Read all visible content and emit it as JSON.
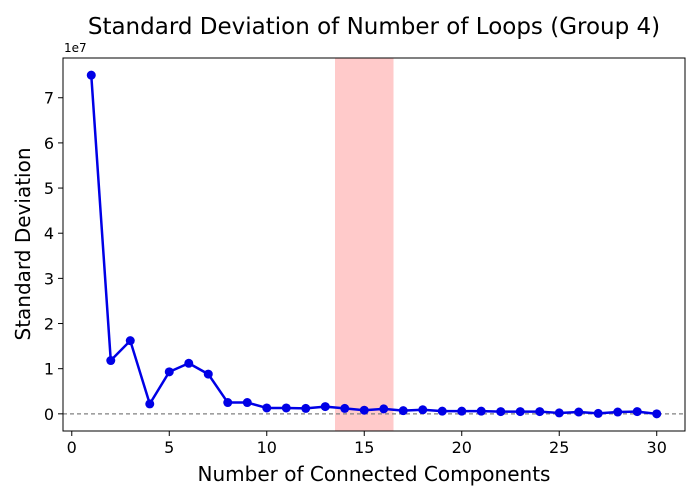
{
  "chart_data": {
    "type": "line",
    "title": "Standard Deviation of Number of Loops (Group 4)",
    "xlabel": "Number of Connected Components",
    "ylabel": "Standard Deviation",
    "y_offset_label": "1e7",
    "xlim": [
      -0.45,
      31.45
    ],
    "ylim": [
      -0.38,
      7.88
    ],
    "x_ticks": [
      0,
      5,
      10,
      15,
      20,
      25,
      30
    ],
    "y_ticks": [
      0,
      1,
      2,
      3,
      4,
      5,
      6,
      7
    ],
    "grid": false,
    "highlight_band": {
      "x_range": [
        13.5,
        16.5
      ],
      "color": "#ff9f9f"
    },
    "reference_line": {
      "y": 0,
      "style": "dashed",
      "color": "#808080"
    },
    "series": [
      {
        "color": "#0000e6",
        "x": [
          1,
          2,
          3,
          4,
          5,
          6,
          7,
          8,
          9,
          10,
          11,
          12,
          13,
          14,
          15,
          16,
          17,
          18,
          19,
          20,
          21,
          22,
          23,
          24,
          25,
          26,
          27,
          28,
          29,
          30
        ],
        "y": [
          7.5,
          1.18,
          1.62,
          0.22,
          0.93,
          1.12,
          0.88,
          0.25,
          0.25,
          0.13,
          0.13,
          0.12,
          0.16,
          0.12,
          0.08,
          0.11,
          0.07,
          0.09,
          0.06,
          0.06,
          0.06,
          0.05,
          0.05,
          0.05,
          0.02,
          0.04,
          0.01,
          0.04,
          0.05,
          0.0
        ]
      }
    ]
  }
}
